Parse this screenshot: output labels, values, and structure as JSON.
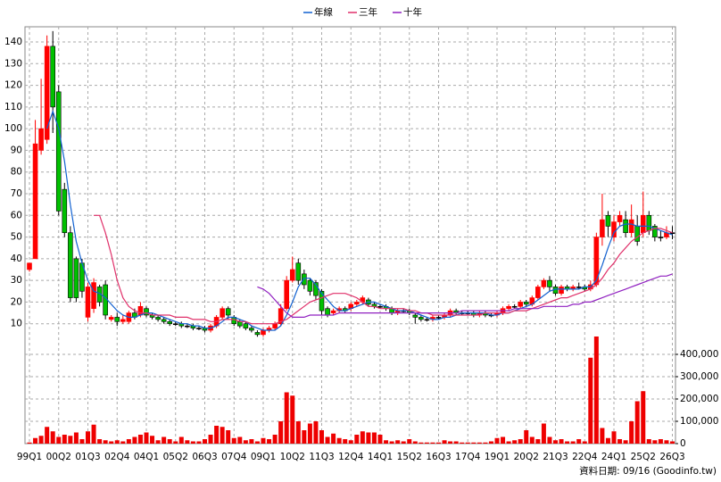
{
  "chart_data": {
    "type": "candlestick",
    "categories": [
      "99Q1",
      null,
      null,
      null,
      null,
      "00Q2",
      null,
      null,
      null,
      null,
      "01Q3",
      null,
      null,
      null,
      null,
      "02Q4",
      null,
      null,
      null,
      null,
      "04Q1",
      null,
      null,
      null,
      null,
      "05Q2",
      null,
      null,
      null,
      null,
      "06Q3",
      null,
      null,
      null,
      null,
      "07Q4",
      null,
      null,
      null,
      null,
      "09Q1",
      null,
      null,
      null,
      null,
      "10Q2",
      null,
      null,
      null,
      null,
      "11Q3",
      null,
      null,
      null,
      null,
      "12Q4",
      null,
      null,
      null,
      null,
      "14Q1",
      null,
      null,
      null,
      null,
      "15Q2",
      null,
      null,
      null,
      null,
      "16Q3",
      null,
      null,
      null,
      null,
      "17Q4",
      null,
      null,
      null,
      null,
      "19Q1",
      null,
      null,
      null,
      null,
      "20Q2",
      null,
      null,
      null,
      null,
      "21Q3",
      null,
      null,
      null,
      null,
      "22Q4",
      null,
      null,
      null,
      null,
      "24Q1",
      null,
      null,
      null,
      null,
      "25Q2",
      null,
      null,
      null,
      null,
      "26Q3"
    ],
    "open": [
      35,
      40,
      90,
      95,
      138,
      117,
      72,
      52,
      40,
      38,
      13,
      17,
      27,
      28,
      12,
      13,
      11,
      11,
      15,
      14,
      17,
      14,
      13,
      12,
      11,
      10,
      10,
      9,
      9,
      8,
      8,
      7,
      9,
      13,
      17,
      13,
      11,
      10,
      8,
      6,
      5,
      7,
      8,
      10,
      17,
      30,
      38,
      33,
      30,
      29,
      25,
      17,
      15,
      16,
      17,
      17,
      19,
      20,
      21,
      19,
      18,
      18,
      17,
      15,
      16,
      16,
      14,
      13,
      12,
      12,
      13,
      13,
      14,
      16,
      15,
      15,
      15,
      14,
      15,
      14,
      14,
      15,
      17,
      18,
      18,
      20,
      19,
      22,
      27,
      30,
      27,
      24,
      27,
      26,
      27,
      27,
      26,
      28,
      50,
      60,
      50,
      57,
      58,
      52,
      55,
      52,
      60,
      55,
      50,
      50,
      52
    ],
    "high": [
      38,
      104,
      123,
      143,
      145,
      120,
      75,
      55,
      41,
      40,
      29,
      31,
      28,
      30,
      14,
      15,
      14,
      16,
      17,
      20,
      18,
      15,
      14,
      13,
      12,
      11,
      11,
      10,
      10,
      9,
      9,
      10,
      14,
      18,
      18,
      14,
      12,
      11,
      9,
      7,
      8,
      9,
      11,
      19,
      32,
      41,
      40,
      35,
      31,
      30,
      26,
      18,
      17,
      18,
      18,
      20,
      21,
      23,
      22,
      20,
      19,
      19,
      18,
      17,
      17,
      17,
      15,
      14,
      13,
      14,
      14,
      15,
      17,
      17,
      16,
      16,
      16,
      16,
      16,
      15,
      16,
      18,
      19,
      19,
      21,
      21,
      23,
      28,
      31,
      32,
      28,
      28,
      28,
      28,
      29,
      28,
      30,
      52,
      70,
      62,
      60,
      62,
      62,
      65,
      60,
      71,
      62,
      56,
      53,
      55,
      55
    ],
    "low": [
      34,
      40,
      88,
      93,
      98,
      60,
      50,
      20,
      20,
      22,
      11,
      15,
      18,
      12,
      11,
      9,
      10,
      10,
      12,
      13,
      13,
      12,
      11,
      10,
      9,
      9,
      8,
      8,
      7,
      7,
      6,
      6,
      8,
      12,
      12,
      9,
      8,
      7,
      6,
      4,
      4,
      6,
      7,
      9,
      16,
      29,
      28,
      26,
      23,
      21,
      14,
      13,
      14,
      15,
      15,
      16,
      18,
      19,
      18,
      17,
      17,
      16,
      14,
      14,
      15,
      14,
      10,
      11,
      11,
      11,
      12,
      12,
      13,
      14,
      14,
      14,
      13,
      13,
      13,
      13,
      13,
      14,
      16,
      17,
      17,
      18,
      18,
      21,
      26,
      25,
      23,
      23,
      25,
      25,
      26,
      25,
      25,
      27,
      46,
      50,
      48,
      55,
      50,
      50,
      46,
      50,
      51,
      48,
      48,
      49,
      49
    ],
    "close": [
      38,
      93,
      100,
      138,
      110,
      62,
      52,
      22,
      22,
      25,
      27,
      29,
      20,
      14,
      13,
      11,
      12,
      15,
      13,
      18,
      14,
      13,
      12,
      11,
      10,
      10,
      9,
      9,
      8,
      8,
      7,
      9,
      13,
      17,
      14,
      10,
      9,
      8,
      7,
      5,
      7,
      8,
      10,
      17,
      30,
      35,
      30,
      28,
      25,
      23,
      16,
      14,
      16,
      17,
      16,
      19,
      20,
      22,
      19,
      18,
      18,
      17,
      15,
      16,
      16,
      15,
      13,
      12,
      12,
      13,
      13,
      14,
      16,
      15,
      15,
      15,
      14,
      15,
      14,
      14,
      15,
      17,
      18,
      18,
      20,
      19,
      22,
      27,
      30,
      27,
      24,
      27,
      26,
      27,
      27,
      26,
      28,
      50,
      58,
      55,
      57,
      60,
      52,
      58,
      48,
      60,
      53,
      50,
      50,
      52,
      52
    ],
    "up_color": "#ff0000",
    "down_color": "#00c000",
    "flat_color": "#000000",
    "series": [
      {
        "name": "年線",
        "color": "#1060d0",
        "values": [
          null,
          null,
          null,
          100,
          108,
          100,
          85,
          65,
          48,
          38,
          30,
          25,
          24,
          22,
          19,
          16,
          14,
          13,
          13,
          14,
          15,
          15,
          14,
          13,
          12,
          11,
          10,
          10,
          9,
          9,
          8,
          8,
          9,
          11,
          13,
          13,
          12,
          11,
          9,
          8,
          7,
          7,
          7,
          9,
          14,
          20,
          27,
          31,
          31,
          28,
          24,
          21,
          18,
          16,
          16,
          17,
          18,
          19,
          20,
          20,
          19,
          18,
          17,
          16,
          16,
          16,
          15,
          14,
          13,
          12,
          12,
          13,
          13,
          14,
          15,
          15,
          15,
          15,
          15,
          14,
          14,
          15,
          15,
          16,
          17,
          18,
          19,
          21,
          23,
          25,
          26,
          26,
          26,
          26,
          26,
          27,
          27,
          30,
          37,
          45,
          52,
          55,
          56,
          56,
          55,
          55,
          55,
          54,
          53,
          52,
          51
        ]
      },
      {
        "name": "三年",
        "color": "#e0306a",
        "values": [
          null,
          null,
          null,
          null,
          null,
          null,
          null,
          null,
          null,
          null,
          null,
          60,
          60,
          52,
          42,
          30,
          22,
          18,
          16,
          15,
          15,
          14,
          14,
          14,
          14,
          13,
          13,
          13,
          12,
          12,
          12,
          11,
          11,
          12,
          12,
          12,
          11,
          11,
          10,
          10,
          10,
          10,
          10,
          11,
          12,
          14,
          16,
          18,
          20,
          21,
          22,
          23,
          24,
          24,
          24,
          23,
          22,
          20,
          18,
          18,
          17,
          17,
          17,
          17,
          17,
          16,
          16,
          15,
          15,
          14,
          14,
          14,
          14,
          14,
          14,
          14,
          14,
          14,
          15,
          15,
          15,
          15,
          15,
          16,
          16,
          16,
          17,
          18,
          19,
          20,
          21,
          22,
          22,
          23,
          24,
          25,
          26,
          28,
          31,
          35,
          38,
          42,
          45,
          48,
          50,
          52,
          53,
          54,
          54,
          53,
          52
        ]
      },
      {
        "name": "十年",
        "color": "#9020c0",
        "values": [
          null,
          null,
          null,
          null,
          null,
          null,
          null,
          null,
          null,
          null,
          null,
          null,
          null,
          null,
          null,
          null,
          null,
          null,
          null,
          null,
          null,
          null,
          null,
          null,
          null,
          null,
          null,
          null,
          null,
          null,
          null,
          null,
          null,
          null,
          null,
          null,
          null,
          null,
          null,
          27,
          26,
          24,
          21,
          18,
          15,
          13,
          13,
          13,
          14,
          14,
          14,
          14,
          14,
          15,
          15,
          15,
          15,
          15,
          15,
          15,
          15,
          15,
          15,
          15,
          15,
          15,
          15,
          15,
          15,
          15,
          15,
          15,
          15,
          15,
          16,
          16,
          16,
          16,
          16,
          16,
          16,
          16,
          16,
          17,
          17,
          17,
          17,
          17,
          18,
          18,
          18,
          18,
          18,
          19,
          19,
          20,
          20,
          21,
          22,
          23,
          24,
          25,
          26,
          27,
          28,
          29,
          30,
          31,
          32,
          32,
          33
        ]
      }
    ],
    "ylim": [
      0,
      147
    ],
    "yticks": [
      10,
      20,
      30,
      40,
      50,
      60,
      70,
      80,
      90,
      100,
      110,
      120,
      130,
      140
    ],
    "volume": [
      5000,
      25000,
      35000,
      75000,
      55000,
      30000,
      40000,
      35000,
      50000,
      20000,
      55000,
      85000,
      20000,
      15000,
      10000,
      15000,
      10000,
      20000,
      30000,
      40000,
      50000,
      35000,
      15000,
      30000,
      20000,
      10000,
      30000,
      15000,
      10000,
      10000,
      20000,
      40000,
      80000,
      75000,
      60000,
      25000,
      30000,
      15000,
      20000,
      10000,
      25000,
      20000,
      40000,
      100000,
      230000,
      215000,
      100000,
      60000,
      90000,
      100000,
      60000,
      30000,
      45000,
      25000,
      20000,
      15000,
      40000,
      55000,
      50000,
      50000,
      40000,
      15000,
      10000,
      15000,
      10000,
      20000,
      10000,
      5000,
      5000,
      5000,
      5000,
      15000,
      10000,
      10000,
      5000,
      5000,
      5000,
      5000,
      5000,
      10000,
      25000,
      30000,
      10000,
      15000,
      20000,
      60000,
      30000,
      20000,
      90000,
      30000,
      15000,
      20000,
      10000,
      10000,
      20000,
      10000,
      385000,
      480000,
      70000,
      25000,
      55000,
      20000,
      15000,
      100000,
      190000,
      235000,
      20000,
      15000,
      20000,
      15000,
      10000
    ],
    "volume_color": "#ee0000",
    "vlim": [
      0,
      468000
    ],
    "vticks": [
      0,
      {
        "value": 100000,
        "label": "100,000"
      },
      {
        "value": 200000,
        "label": "200,000"
      },
      {
        "value": 300000,
        "label": "300,000"
      },
      {
        "value": 400000,
        "label": "400,000"
      }
    ],
    "grid": true,
    "footer": "資料日期: 09/16  (Goodinfo.tw)"
  }
}
